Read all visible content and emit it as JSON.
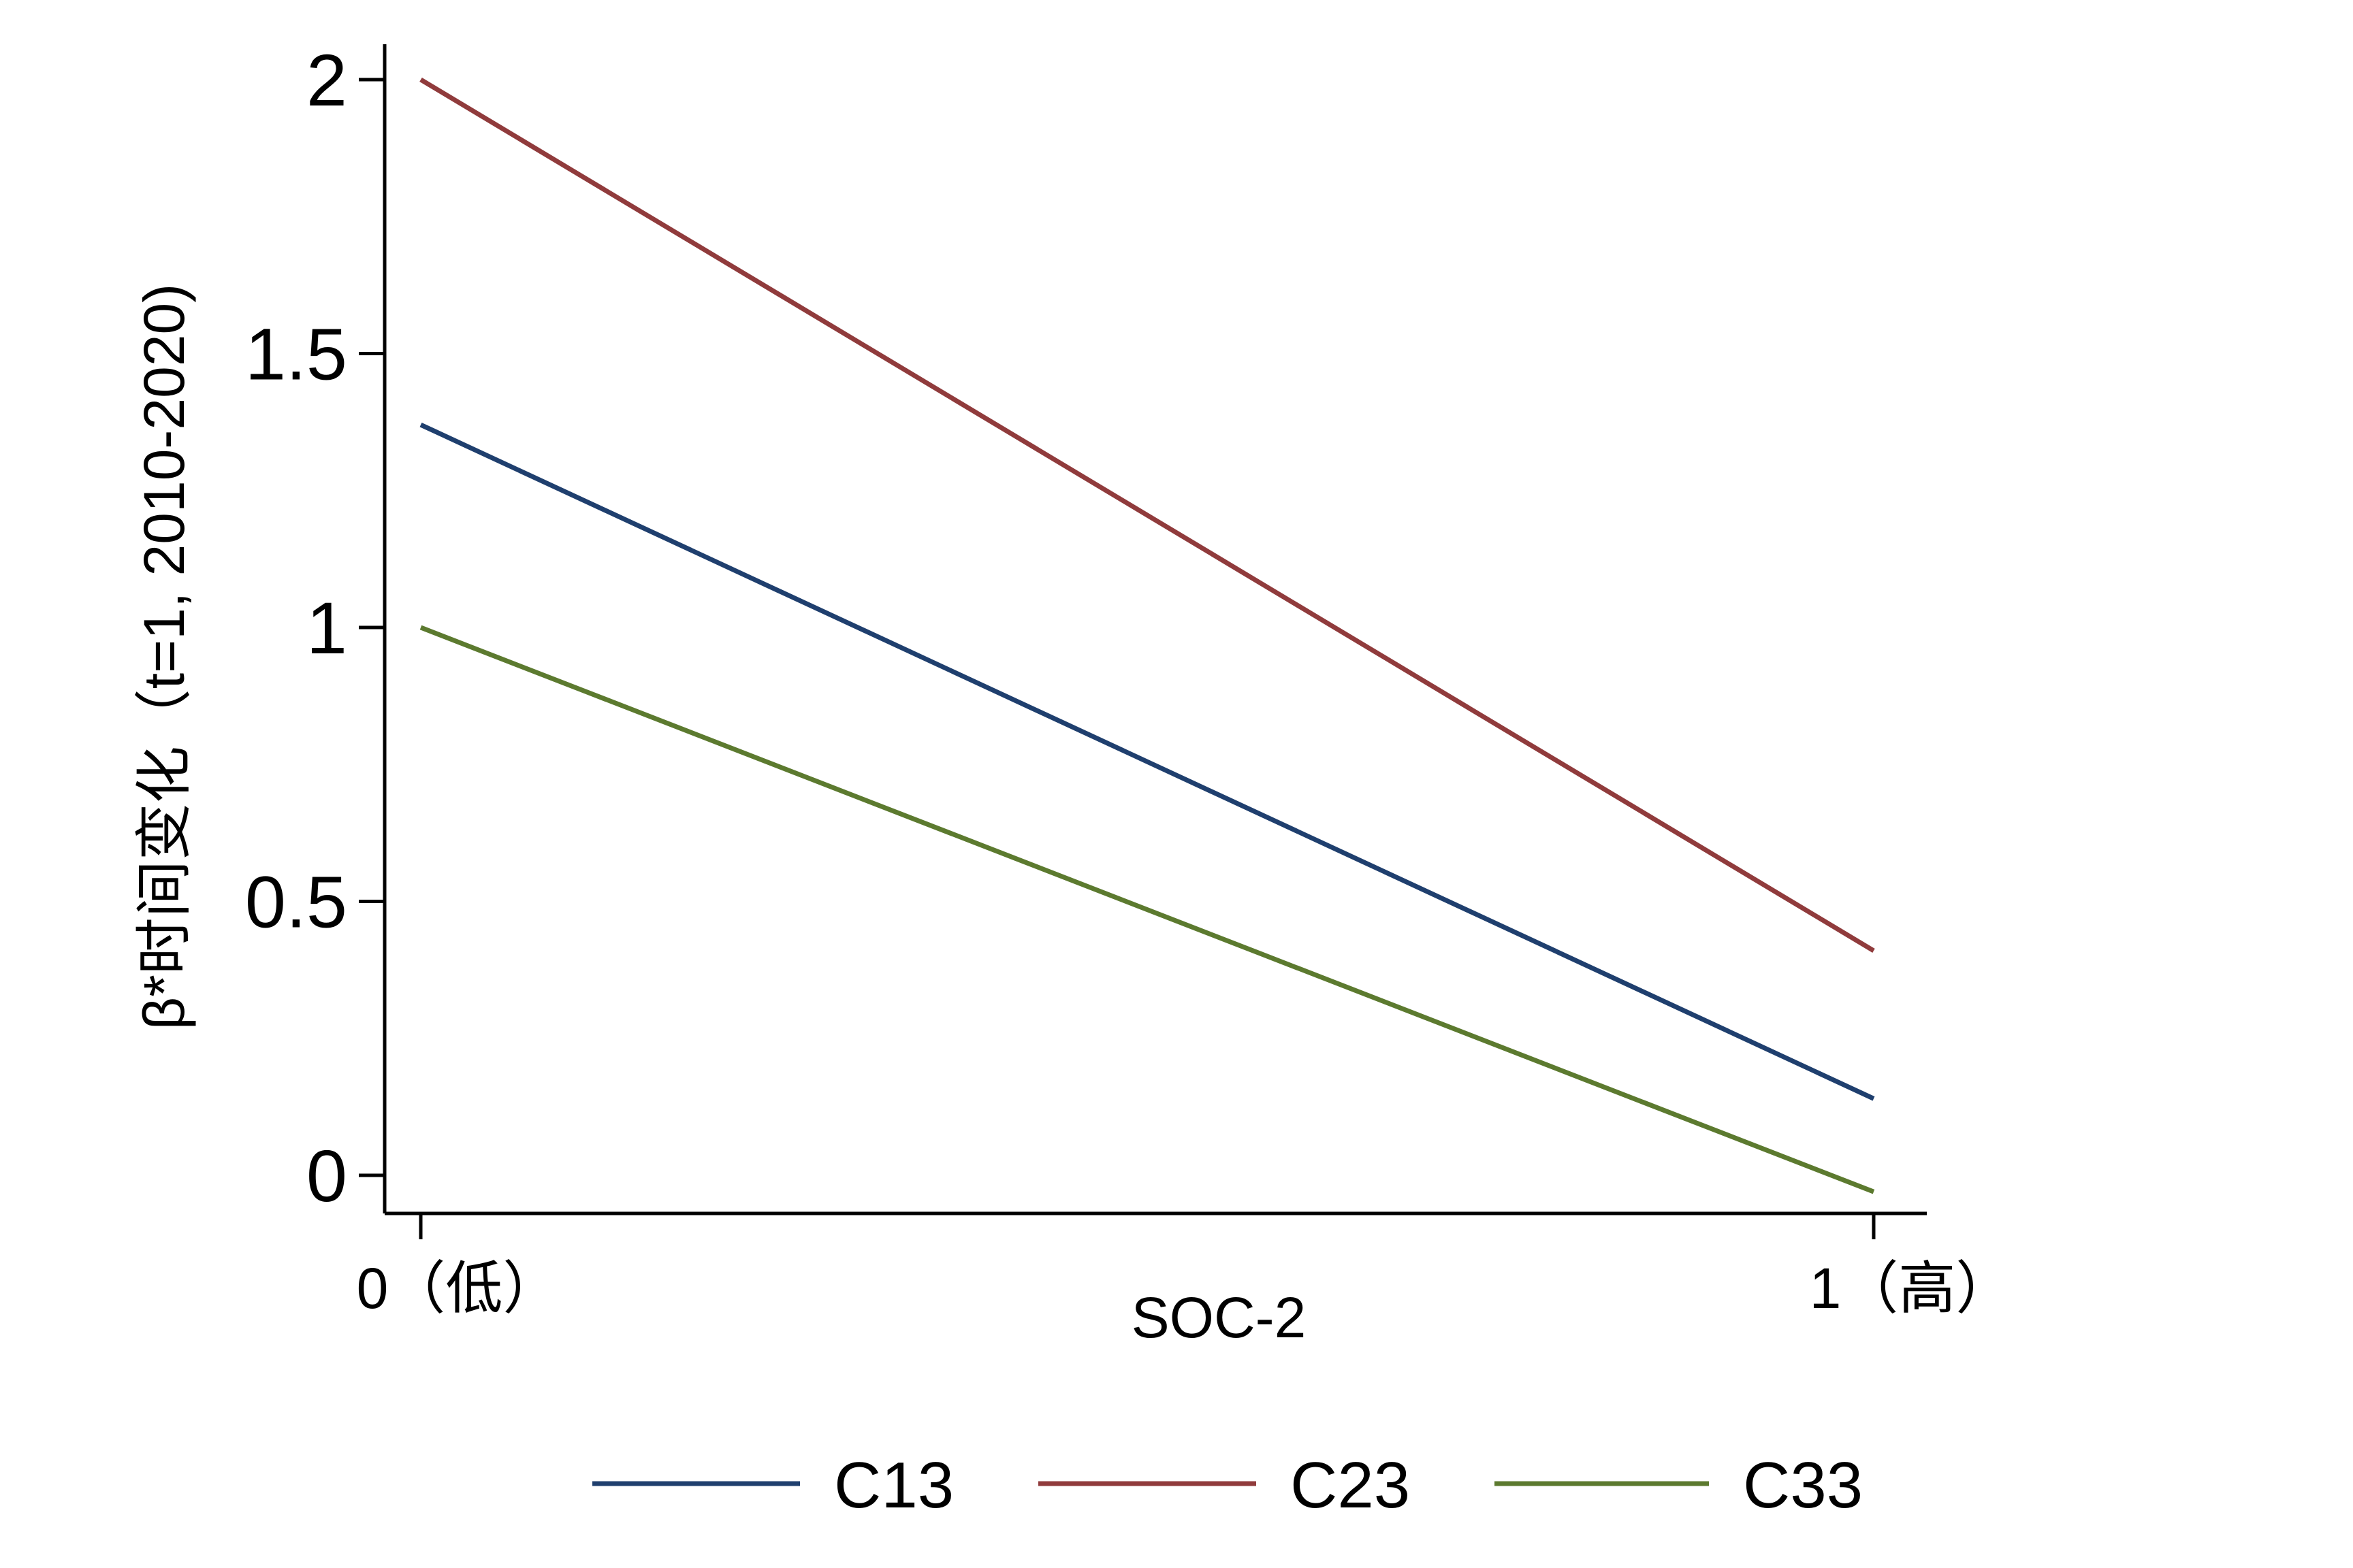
{
  "chart_data": {
    "type": "line",
    "title": "",
    "xlabel": "SOC-2",
    "ylabel": "β*时间变化（t=1, 2010-2020)",
    "x": [
      0,
      1
    ],
    "x_tick_labels": [
      "0（低）",
      "1（高）"
    ],
    "ylim": [
      0,
      2
    ],
    "y_ticks": [
      0,
      0.5,
      1,
      1.5,
      2
    ],
    "y_tick_labels": [
      "0",
      "0.5",
      "1",
      "1.5",
      "2"
    ],
    "grid": false,
    "legend_position": "bottom",
    "series": [
      {
        "name": "C13",
        "color": "#1f3f6e",
        "values": [
          1.37,
          0.14
        ]
      },
      {
        "name": "C23",
        "color": "#903b3c",
        "values": [
          2.0,
          0.41
        ]
      },
      {
        "name": "C33",
        "color": "#5c7a2f",
        "values": [
          1.0,
          -0.03
        ]
      }
    ]
  }
}
